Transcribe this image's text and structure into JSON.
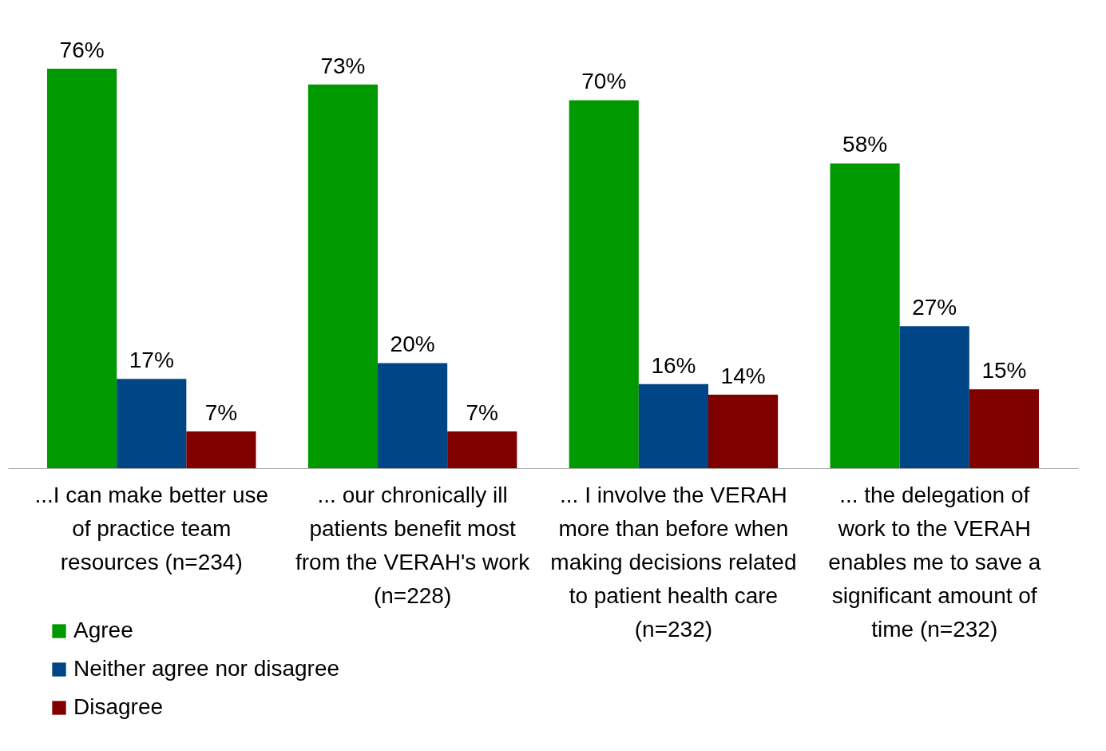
{
  "chart_data": {
    "type": "bar",
    "categories": [
      "...I can make better use of practice team resources (n=234)",
      "... our chronically ill patients benefit most from the VERAH's work (n=228)",
      "... I involve the VERAH more than before when making decisions related to patient health care (n=232)",
      "... the delegation of work to the VERAH enables me to save a significant amount of time (n=232)"
    ],
    "series": [
      {
        "name": "Agree",
        "color": "#009900",
        "values": [
          76,
          73,
          70,
          58
        ],
        "value_labels": [
          "76%",
          "73%",
          "70%",
          "58%"
        ]
      },
      {
        "name": "Neither agree nor disagree",
        "color": "#004586",
        "values": [
          17,
          20,
          16,
          27
        ],
        "value_labels": [
          "17%",
          "20%",
          "16%",
          "27%"
        ]
      },
      {
        "name": "Disagree",
        "color": "#800000",
        "values": [
          7,
          7,
          14,
          15
        ],
        "value_labels": [
          "7%",
          "7%",
          "14%",
          "15%"
        ]
      }
    ],
    "legend": "bottom left"
  }
}
